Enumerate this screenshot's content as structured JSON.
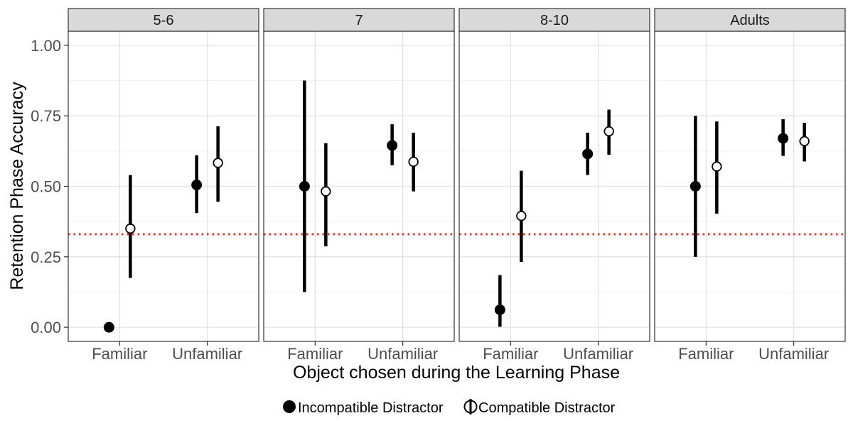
{
  "chart_data": {
    "type": "point-range",
    "facets": [
      "5-6",
      "7",
      "8-10",
      "Adults"
    ],
    "categories": [
      "Familiar",
      "Unfamiliar"
    ],
    "xlabel": "Object chosen during the Learning Phase",
    "ylabel": "Retention Phase Accuracy",
    "ylim": [
      -0.05,
      1.05
    ],
    "yticks": [
      0.0,
      0.25,
      0.5,
      0.75,
      1.0
    ],
    "ytick_labels": [
      "0.00",
      "0.25",
      "0.50",
      "0.75",
      "1.00"
    ],
    "reference_line": {
      "y": 0.33,
      "style": "dotted",
      "color": "#ff2a1a"
    },
    "grid": true,
    "legend": {
      "position": "bottom",
      "entries": [
        {
          "name": "Incompatible Distractor",
          "marker": "filled-circle"
        },
        {
          "name": "Compatible Distractor",
          "marker": "open-circle"
        }
      ]
    },
    "series": [
      {
        "name": "Incompatible Distractor",
        "marker": "filled",
        "points": [
          {
            "facet": "5-6",
            "category": "Familiar",
            "y": 0.0,
            "lo": null,
            "hi": null
          },
          {
            "facet": "5-6",
            "category": "Unfamiliar",
            "y": 0.505,
            "lo": 0.405,
            "hi": 0.61
          },
          {
            "facet": "7",
            "category": "Familiar",
            "y": 0.5,
            "lo": 0.125,
            "hi": 0.875
          },
          {
            "facet": "7",
            "category": "Unfamiliar",
            "y": 0.645,
            "lo": 0.575,
            "hi": 0.72
          },
          {
            "facet": "8-10",
            "category": "Familiar",
            "y": 0.062,
            "lo": 0.002,
            "hi": 0.185
          },
          {
            "facet": "8-10",
            "category": "Unfamiliar",
            "y": 0.615,
            "lo": 0.54,
            "hi": 0.69
          },
          {
            "facet": "Adults",
            "category": "Familiar",
            "y": 0.5,
            "lo": 0.25,
            "hi": 0.75
          },
          {
            "facet": "Adults",
            "category": "Unfamiliar",
            "y": 0.67,
            "lo": 0.608,
            "hi": 0.738
          }
        ]
      },
      {
        "name": "Compatible Distractor",
        "marker": "open",
        "points": [
          {
            "facet": "5-6",
            "category": "Familiar",
            "y": 0.35,
            "lo": 0.175,
            "hi": 0.54
          },
          {
            "facet": "5-6",
            "category": "Unfamiliar",
            "y": 0.583,
            "lo": 0.445,
            "hi": 0.713
          },
          {
            "facet": "7",
            "category": "Familiar",
            "y": 0.482,
            "lo": 0.287,
            "hi": 0.653
          },
          {
            "facet": "7",
            "category": "Unfamiliar",
            "y": 0.587,
            "lo": 0.482,
            "hi": 0.69
          },
          {
            "facet": "8-10",
            "category": "Familiar",
            "y": 0.395,
            "lo": 0.232,
            "hi": 0.555
          },
          {
            "facet": "8-10",
            "category": "Unfamiliar",
            "y": 0.695,
            "lo": 0.612,
            "hi": 0.772
          },
          {
            "facet": "Adults",
            "category": "Familiar",
            "y": 0.57,
            "lo": 0.403,
            "hi": 0.73
          },
          {
            "facet": "Adults",
            "category": "Unfamiliar",
            "y": 0.66,
            "lo": 0.588,
            "hi": 0.725
          }
        ]
      }
    ]
  }
}
